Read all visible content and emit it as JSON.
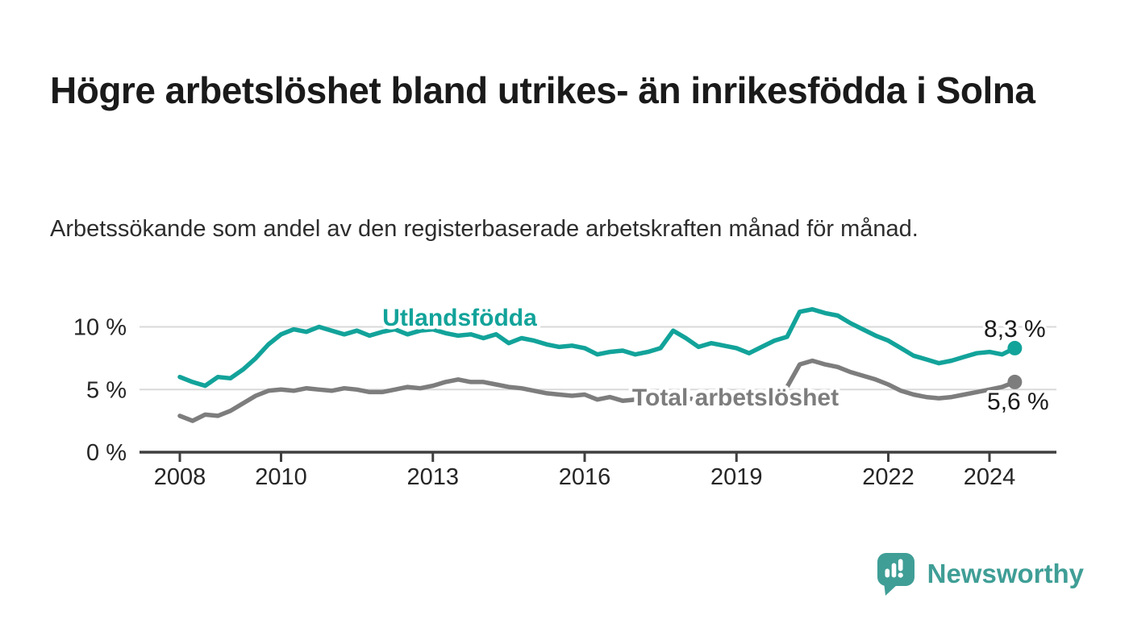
{
  "header": {
    "title": "Högre arbetslöshet bland utrikes- än inrikesfödda i Solna",
    "subtitle": "Arbetssökande som andel av den registerbaserade arbetskraften månad för månad."
  },
  "footer": {
    "brand": "Newsworthy"
  },
  "colors": {
    "accent_teal": "#12a39a",
    "series_gray": "#7d7d7d",
    "grid": "#d9d9d9",
    "axis": "#3f3f3f",
    "text_dark": "#1a1a1a",
    "axis_label": "#262626",
    "logo_teal": "#3f9e96",
    "halo": "#ffffff"
  },
  "chart_data": {
    "type": "line",
    "title": "Arbetssökande som andel av den registerbaserade arbetskraften",
    "xlabel": "",
    "ylabel": "",
    "grid": "horizontal",
    "legend_position": "inline-labels",
    "x_start_year": 2008,
    "x_step_years": 0.25,
    "xlim": [
      2007.2,
      2025.3
    ],
    "ylim": [
      0,
      12.3
    ],
    "y_ticks": [
      {
        "value": 0,
        "label": "0 %"
      },
      {
        "value": 5,
        "label": "5 %"
      },
      {
        "value": 10,
        "label": "10 %"
      }
    ],
    "x_ticks": [
      {
        "value": 2008,
        "label": "2008"
      },
      {
        "value": 2010,
        "label": "2010"
      },
      {
        "value": 2013,
        "label": "2013"
      },
      {
        "value": 2016,
        "label": "2016"
      },
      {
        "value": 2019,
        "label": "2019"
      },
      {
        "value": 2022,
        "label": "2022"
      },
      {
        "value": 2024,
        "label": "2024"
      }
    ],
    "series": [
      {
        "name": "Utlandsfödda",
        "color": "#12a39a",
        "end_label": "8,3 %",
        "end_label_position": "above",
        "values": [
          6.0,
          5.6,
          5.3,
          6.0,
          5.9,
          6.6,
          7.5,
          8.6,
          9.4,
          9.8,
          9.6,
          10.0,
          9.7,
          9.4,
          9.7,
          9.3,
          9.6,
          9.8,
          9.4,
          9.7,
          9.8,
          9.5,
          9.3,
          9.4,
          9.1,
          9.4,
          8.7,
          9.1,
          8.9,
          8.6,
          8.4,
          8.5,
          8.3,
          7.8,
          8.0,
          8.1,
          7.8,
          8.0,
          8.3,
          9.7,
          9.1,
          8.4,
          8.7,
          8.5,
          8.3,
          7.9,
          8.4,
          8.9,
          9.2,
          11.2,
          11.4,
          11.1,
          10.9,
          10.3,
          9.8,
          9.3,
          8.9,
          8.3,
          7.7,
          7.4,
          7.1,
          7.3,
          7.6,
          7.9,
          8.0,
          7.8,
          8.3
        ]
      },
      {
        "name": "Total arbetslöshet",
        "color": "#7d7d7d",
        "end_label": "5,6 %",
        "end_label_position": "below",
        "values": [
          2.9,
          2.5,
          3.0,
          2.9,
          3.3,
          3.9,
          4.5,
          4.9,
          5.0,
          4.9,
          5.1,
          5.0,
          4.9,
          5.1,
          5.0,
          4.8,
          4.8,
          5.0,
          5.2,
          5.1,
          5.3,
          5.6,
          5.8,
          5.6,
          5.6,
          5.4,
          5.2,
          5.1,
          4.9,
          4.7,
          4.6,
          4.5,
          4.6,
          4.2,
          4.4,
          4.1,
          4.2,
          4.1,
          4.3,
          4.4,
          4.3,
          4.2,
          4.4,
          4.5,
          4.7,
          4.5,
          4.6,
          4.8,
          5.2,
          7.0,
          7.3,
          7.0,
          6.8,
          6.4,
          6.1,
          5.8,
          5.4,
          4.9,
          4.6,
          4.4,
          4.3,
          4.4,
          4.6,
          4.8,
          5.0,
          5.2,
          5.6
        ]
      }
    ],
    "series_annotations": [
      {
        "text": "Utlandsfödda",
        "x": 2013.53,
        "y": 10.1,
        "color": "#12a39a"
      },
      {
        "text": "Total arbetslöshet",
        "x": 2018.98,
        "y": 3.73,
        "color": "#7d7d7d"
      }
    ]
  }
}
